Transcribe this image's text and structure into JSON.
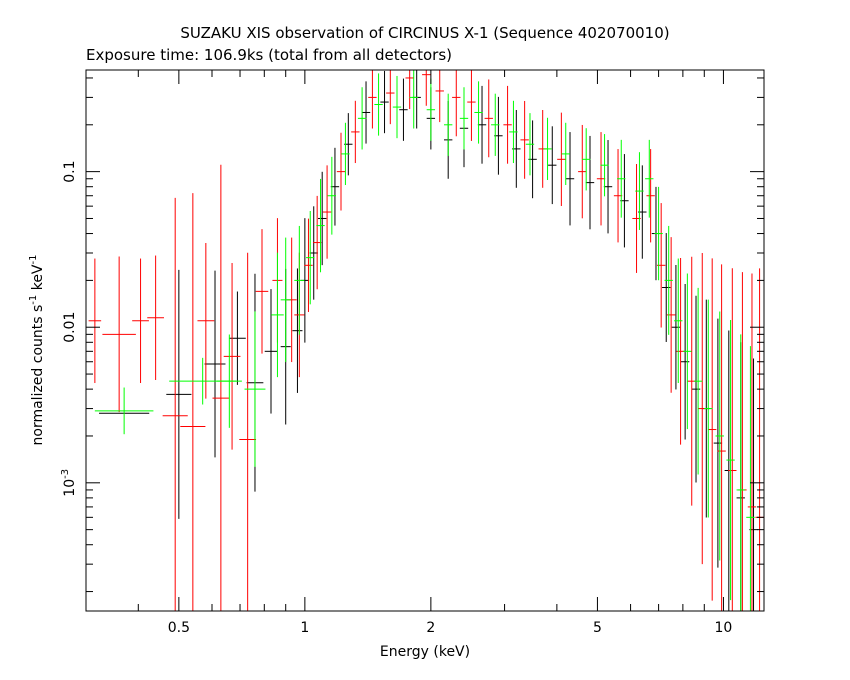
{
  "chart_data": {
    "type": "scatter",
    "title": "SUZAKU XIS observation of CIRCINUS X-1 (Sequence 402070010)",
    "subtitle": "Exposure time: 106.9ks (total from all detectors)",
    "xlabel": "Energy (keV)",
    "ylabel": {
      "base": "normalized counts s",
      "sup1": "-1",
      "mid": " keV",
      "sup2": "-1"
    },
    "x_scale": "log",
    "y_scale": "log",
    "xlim": [
      0.3,
      12.5
    ],
    "ylim": [
      0.00015,
      0.45
    ],
    "x_ticks": [
      {
        "value": 0.5,
        "label": "0.5"
      },
      {
        "value": 1,
        "label": "1"
      },
      {
        "value": 2,
        "label": "2"
      },
      {
        "value": 5,
        "label": "5"
      },
      {
        "value": 10,
        "label": "10"
      }
    ],
    "y_ticks": [
      {
        "value": 0.1,
        "label": "0.1"
      },
      {
        "value": 0.01,
        "label": "0.01"
      },
      {
        "value": 0.001,
        "label_base": "10",
        "label_sup": "-3"
      }
    ],
    "grid": false,
    "legend": "none",
    "series": [
      {
        "color": "#000000",
        "points": [
          [
            0.37,
            0.0028,
            0.06,
            0.0
          ],
          [
            0.5,
            0.0037,
            0.03,
            0.8
          ],
          [
            0.61,
            0.0058,
            0.025,
            0.6
          ],
          [
            0.69,
            0.0085,
            0.02,
            0.3
          ],
          [
            0.76,
            0.0044,
            0.02,
            0.7
          ],
          [
            0.83,
            0.007,
            0.015,
            0.4
          ],
          [
            0.9,
            0.0075,
            0.012,
            0.5
          ],
          [
            0.96,
            0.0095,
            0.012,
            0.4
          ],
          [
            1.0,
            0.02,
            0.01,
            0.4
          ],
          [
            1.05,
            0.03,
            0.01,
            0.3
          ],
          [
            1.1,
            0.05,
            0.01,
            0.3
          ],
          [
            1.18,
            0.08,
            0.01,
            0.25
          ],
          [
            1.27,
            0.15,
            0.01,
            0.2
          ],
          [
            1.4,
            0.24,
            0.01,
            0.2
          ],
          [
            1.55,
            0.28,
            0.01,
            0.2
          ],
          [
            1.72,
            0.25,
            0.01,
            0.2
          ],
          [
            1.85,
            0.3,
            0.01,
            0.2
          ],
          [
            2.0,
            0.22,
            0.01,
            0.2
          ],
          [
            2.2,
            0.16,
            0.01,
            0.25
          ],
          [
            2.4,
            0.19,
            0.01,
            0.25
          ],
          [
            2.65,
            0.2,
            0.01,
            0.25
          ],
          [
            2.9,
            0.17,
            0.01,
            0.25
          ],
          [
            3.2,
            0.14,
            0.01,
            0.25
          ],
          [
            3.5,
            0.12,
            0.01,
            0.25
          ],
          [
            3.9,
            0.11,
            0.01,
            0.25
          ],
          [
            4.3,
            0.09,
            0.01,
            0.3
          ],
          [
            4.8,
            0.085,
            0.01,
            0.3
          ],
          [
            5.3,
            0.08,
            0.01,
            0.3
          ],
          [
            5.8,
            0.065,
            0.01,
            0.3
          ],
          [
            6.4,
            0.055,
            0.01,
            0.3
          ],
          [
            6.9,
            0.04,
            0.01,
            0.3
          ],
          [
            7.3,
            0.018,
            0.01,
            0.35
          ],
          [
            7.7,
            0.01,
            0.01,
            0.4
          ],
          [
            8.1,
            0.006,
            0.01,
            0.5
          ],
          [
            8.6,
            0.004,
            0.01,
            0.6
          ],
          [
            9.1,
            0.003,
            0.01,
            0.7
          ],
          [
            9.7,
            0.0018,
            0.01,
            0.8
          ],
          [
            10.3,
            0.0012,
            0.01,
            0.9
          ],
          [
            11.0,
            0.0008,
            0.01,
            1.0
          ],
          [
            11.8,
            0.0005,
            0.01,
            1.1
          ]
        ]
      },
      {
        "color": "#ff0000",
        "points": [
          [
            0.315,
            0.011,
            0.015,
            0.4
          ],
          [
            0.36,
            0.009,
            0.04,
            0.5
          ],
          [
            0.405,
            0.011,
            0.02,
            0.4
          ],
          [
            0.44,
            0.0115,
            0.02,
            0.4
          ],
          [
            0.49,
            0.0027,
            0.03,
            1.4
          ],
          [
            0.54,
            0.0023,
            0.03,
            1.5
          ],
          [
            0.58,
            0.011,
            0.02,
            0.5
          ],
          [
            0.63,
            0.0035,
            0.02,
            1.5
          ],
          [
            0.67,
            0.0065,
            0.02,
            0.6
          ],
          [
            0.73,
            0.0019,
            0.02,
            1.2
          ],
          [
            0.79,
            0.017,
            0.015,
            0.4
          ],
          [
            0.86,
            0.02,
            0.012,
            0.4
          ],
          [
            0.93,
            0.015,
            0.012,
            0.4
          ],
          [
            0.97,
            0.012,
            0.012,
            0.4
          ],
          [
            1.02,
            0.025,
            0.01,
            0.3
          ],
          [
            1.07,
            0.035,
            0.01,
            0.3
          ],
          [
            1.13,
            0.055,
            0.01,
            0.3
          ],
          [
            1.22,
            0.1,
            0.01,
            0.25
          ],
          [
            1.32,
            0.18,
            0.01,
            0.2
          ],
          [
            1.45,
            0.3,
            0.01,
            0.2
          ],
          [
            1.6,
            0.32,
            0.01,
            0.2
          ],
          [
            1.78,
            0.4,
            0.01,
            0.2
          ],
          [
            1.95,
            0.42,
            0.01,
            0.2
          ],
          [
            2.1,
            0.33,
            0.01,
            0.2
          ],
          [
            2.3,
            0.3,
            0.01,
            0.25
          ],
          [
            2.5,
            0.28,
            0.01,
            0.25
          ],
          [
            2.75,
            0.22,
            0.01,
            0.25
          ],
          [
            3.05,
            0.2,
            0.01,
            0.25
          ],
          [
            3.35,
            0.16,
            0.01,
            0.25
          ],
          [
            3.7,
            0.14,
            0.01,
            0.25
          ],
          [
            4.1,
            0.12,
            0.01,
            0.3
          ],
          [
            4.6,
            0.1,
            0.01,
            0.3
          ],
          [
            5.1,
            0.09,
            0.01,
            0.3
          ],
          [
            5.6,
            0.07,
            0.01,
            0.3
          ],
          [
            6.2,
            0.05,
            0.01,
            0.35
          ],
          [
            6.7,
            0.07,
            0.01,
            0.3
          ],
          [
            7.1,
            0.025,
            0.01,
            0.4
          ],
          [
            7.5,
            0.012,
            0.01,
            0.5
          ],
          [
            7.9,
            0.007,
            0.01,
            0.6
          ],
          [
            8.4,
            0.0045,
            0.01,
            0.8
          ],
          [
            8.9,
            0.003,
            0.01,
            1.0
          ],
          [
            9.4,
            0.0022,
            0.01,
            1.1
          ],
          [
            9.9,
            0.0016,
            0.01,
            1.2
          ],
          [
            10.5,
            0.0012,
            0.01,
            1.3
          ],
          [
            11.1,
            0.0009,
            0.01,
            1.4
          ],
          [
            11.7,
            0.0007,
            0.01,
            1.5
          ],
          [
            12.2,
            0.0006,
            0.01,
            1.6
          ]
        ]
      },
      {
        "color": "#00ff00",
        "points": [
          [
            0.37,
            0.0029,
            0.07,
            0.15
          ],
          [
            0.57,
            0.0045,
            0.08,
            0.15
          ],
          [
            0.66,
            0.0045,
            0.03,
            0.3
          ],
          [
            0.76,
            0.004,
            0.025,
            0.5
          ],
          [
            0.86,
            0.012,
            0.015,
            0.4
          ],
          [
            0.9,
            0.015,
            0.012,
            0.4
          ],
          [
            0.97,
            0.02,
            0.012,
            0.35
          ],
          [
            1.03,
            0.028,
            0.01,
            0.3
          ],
          [
            1.09,
            0.045,
            0.01,
            0.3
          ],
          [
            1.16,
            0.07,
            0.01,
            0.25
          ],
          [
            1.25,
            0.13,
            0.01,
            0.2
          ],
          [
            1.37,
            0.22,
            0.01,
            0.2
          ],
          [
            1.5,
            0.27,
            0.01,
            0.2
          ],
          [
            1.66,
            0.26,
            0.01,
            0.2
          ],
          [
            1.82,
            0.3,
            0.01,
            0.2
          ],
          [
            2.0,
            0.25,
            0.01,
            0.2
          ],
          [
            2.2,
            0.2,
            0.01,
            0.2
          ],
          [
            2.4,
            0.22,
            0.01,
            0.2
          ],
          [
            2.6,
            0.24,
            0.01,
            0.2
          ],
          [
            2.85,
            0.2,
            0.01,
            0.2
          ],
          [
            3.15,
            0.18,
            0.01,
            0.2
          ],
          [
            3.45,
            0.15,
            0.01,
            0.2
          ],
          [
            3.8,
            0.14,
            0.01,
            0.2
          ],
          [
            4.2,
            0.13,
            0.01,
            0.2
          ],
          [
            4.7,
            0.12,
            0.01,
            0.2
          ],
          [
            5.2,
            0.11,
            0.01,
            0.2
          ],
          [
            5.7,
            0.09,
            0.01,
            0.25
          ],
          [
            6.3,
            0.075,
            0.01,
            0.25
          ],
          [
            6.65,
            0.09,
            0.01,
            0.25
          ],
          [
            7.0,
            0.04,
            0.01,
            0.3
          ],
          [
            7.4,
            0.02,
            0.01,
            0.35
          ],
          [
            7.8,
            0.011,
            0.01,
            0.4
          ],
          [
            8.2,
            0.007,
            0.01,
            0.5
          ],
          [
            8.7,
            0.0045,
            0.01,
            0.6
          ],
          [
            9.2,
            0.003,
            0.01,
            0.7
          ],
          [
            9.8,
            0.002,
            0.01,
            0.8
          ],
          [
            10.4,
            0.0014,
            0.01,
            0.9
          ],
          [
            11.0,
            0.0009,
            0.01,
            1.0
          ],
          [
            11.6,
            0.0006,
            0.01,
            1.1
          ]
        ]
      }
    ]
  }
}
